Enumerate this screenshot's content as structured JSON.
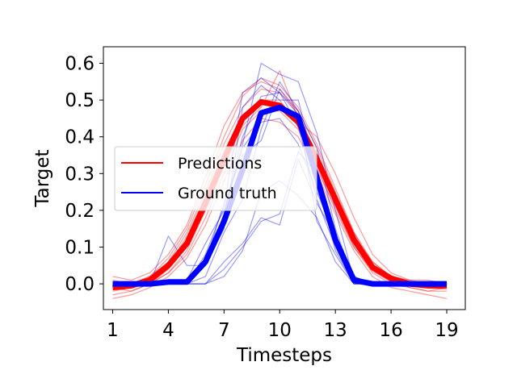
{
  "chart_data": {
    "type": "line",
    "title": "",
    "xlabel": "Timesteps",
    "ylabel": "Target",
    "xlim": [
      0.5,
      20.0
    ],
    "ylim": [
      -0.07,
      0.645
    ],
    "xticks": [
      1,
      4,
      7,
      10,
      13,
      16,
      19
    ],
    "xtick_labels": [
      "1",
      "4",
      "7",
      "10",
      "13",
      "16",
      "19"
    ],
    "yticks": [
      0.0,
      0.1,
      0.2,
      0.3,
      0.4,
      0.5,
      0.6
    ],
    "ytick_labels": [
      "0.0",
      "0.1",
      "0.2",
      "0.3",
      "0.4",
      "0.5",
      "0.6"
    ],
    "grid": false,
    "legend": {
      "position": "center-left",
      "entries": [
        {
          "label": "Predictions",
          "color": "#ff0000"
        },
        {
          "label": "Ground truth",
          "color": "#0000ff"
        }
      ]
    },
    "x": [
      1,
      2,
      3,
      4,
      5,
      6,
      7,
      8,
      9,
      10,
      11,
      12,
      13,
      14,
      15,
      16,
      17,
      18,
      19
    ],
    "series": [
      {
        "name": "Predictions",
        "color": "#ff0000",
        "width": 7,
        "opacity": 1.0,
        "values": [
          -0.01,
          -0.005,
          0.01,
          0.05,
          0.11,
          0.22,
          0.34,
          0.45,
          0.495,
          0.485,
          0.44,
          0.34,
          0.23,
          0.12,
          0.045,
          0.015,
          0.0,
          -0.005,
          -0.005
        ]
      },
      {
        "name": "Ground truth",
        "color": "#0000ff",
        "width": 7,
        "opacity": 1.0,
        "values": [
          0.0,
          0.0,
          0.0,
          0.005,
          0.005,
          0.06,
          0.17,
          0.31,
          0.465,
          0.48,
          0.455,
          0.29,
          0.12,
          0.01,
          0.0,
          0.0,
          0.0,
          0.0,
          0.0
        ]
      }
    ],
    "thin_series": [
      {
        "color": "#ff0000",
        "values": [
          0.01,
          0.0,
          0.02,
          0.06,
          0.14,
          0.25,
          0.38,
          0.48,
          0.53,
          0.52,
          0.47,
          0.37,
          0.25,
          0.14,
          0.06,
          0.02,
          0.005,
          0.0,
          -0.01
        ]
      },
      {
        "color": "#ff0000",
        "values": [
          -0.03,
          -0.02,
          0.0,
          0.03,
          0.08,
          0.18,
          0.3,
          0.42,
          0.47,
          0.47,
          0.42,
          0.31,
          0.21,
          0.1,
          0.03,
          0.0,
          -0.01,
          -0.02,
          -0.02
        ]
      },
      {
        "color": "#ff0000",
        "values": [
          0.0,
          0.0,
          0.02,
          0.07,
          0.15,
          0.27,
          0.4,
          0.51,
          0.56,
          0.54,
          0.48,
          0.38,
          0.26,
          0.14,
          0.05,
          0.015,
          0.0,
          0.0,
          0.0
        ]
      },
      {
        "color": "#ff0000",
        "values": [
          -0.04,
          -0.03,
          -0.01,
          0.02,
          0.07,
          0.16,
          0.28,
          0.39,
          0.45,
          0.44,
          0.4,
          0.3,
          0.19,
          0.09,
          0.02,
          -0.01,
          -0.02,
          -0.03,
          -0.04
        ]
      },
      {
        "color": "#ff0000",
        "values": [
          0.02,
          0.01,
          0.03,
          0.08,
          0.16,
          0.29,
          0.43,
          0.52,
          0.55,
          0.53,
          0.46,
          0.35,
          0.24,
          0.13,
          0.06,
          0.02,
          0.01,
          0.01,
          0.0
        ]
      },
      {
        "color": "#ff0000",
        "values": [
          -0.02,
          -0.01,
          0.0,
          0.04,
          0.1,
          0.2,
          0.32,
          0.43,
          0.48,
          0.58,
          0.45,
          0.33,
          0.22,
          0.11,
          0.04,
          0.01,
          -0.01,
          -0.02,
          -0.01
        ]
      },
      {
        "color": "#ff0000",
        "values": [
          0.0,
          0.0,
          0.01,
          0.05,
          0.13,
          0.24,
          0.36,
          0.46,
          0.5,
          0.49,
          0.44,
          0.4,
          0.3,
          0.18,
          0.08,
          0.03,
          0.01,
          0.0,
          0.0
        ]
      },
      {
        "color": "#ff0000",
        "values": [
          -0.01,
          -0.02,
          0.0,
          0.03,
          0.09,
          0.2,
          0.33,
          0.44,
          0.5,
          0.5,
          0.43,
          0.32,
          0.2,
          0.1,
          0.035,
          0.005,
          -0.005,
          -0.01,
          -0.015
        ]
      },
      {
        "color": "#0000ff",
        "values": [
          0.0,
          0.0,
          0.0,
          0.13,
          0.05,
          0.05,
          0.19,
          0.38,
          0.6,
          0.57,
          0.55,
          0.41,
          0.2,
          0.01,
          0.0,
          0.0,
          0.0,
          0.0,
          0.0
        ]
      },
      {
        "color": "#0000ff",
        "values": [
          0.0,
          0.0,
          0.0,
          0.0,
          0.0,
          0.08,
          0.21,
          0.52,
          0.56,
          0.52,
          0.43,
          0.23,
          0.1,
          0.0,
          0.0,
          0.0,
          0.0,
          0.0,
          0.0
        ]
      },
      {
        "color": "#0000ff",
        "values": [
          0.0,
          0.0,
          0.0,
          0.0,
          0.0,
          0.02,
          0.14,
          0.23,
          0.42,
          0.55,
          0.47,
          0.17,
          0.08,
          0.0,
          0.0,
          0.0,
          0.0,
          0.0,
          0.0
        ]
      },
      {
        "color": "#0000ff",
        "values": [
          0.0,
          0.0,
          0.0,
          0.0,
          0.0,
          0.0,
          0.06,
          0.11,
          0.18,
          0.16,
          0.34,
          0.22,
          0.13,
          0.02,
          0.0,
          0.0,
          0.0,
          0.0,
          0.0
        ]
      },
      {
        "color": "#0000ff",
        "values": [
          0.0,
          0.0,
          0.0,
          0.01,
          0.01,
          0.11,
          0.2,
          0.37,
          0.44,
          0.45,
          0.38,
          0.25,
          0.13,
          0.01,
          0.0,
          0.0,
          0.0,
          0.0,
          0.0
        ]
      },
      {
        "color": "#0000ff",
        "values": [
          0.0,
          0.0,
          0.0,
          0.0,
          0.0,
          0.0,
          0.02,
          0.09,
          0.25,
          0.28,
          0.24,
          0.18,
          0.06,
          0.0,
          0.0,
          0.0,
          0.0,
          0.0,
          0.0
        ]
      },
      {
        "color": "#0000ff",
        "values": [
          0.0,
          0.0,
          0.0,
          0.0,
          0.01,
          0.05,
          0.15,
          0.48,
          0.54,
          0.5,
          0.5,
          0.3,
          0.12,
          0.0,
          0.0,
          0.0,
          0.0,
          0.0,
          0.0
        ]
      },
      {
        "color": "#0000ff",
        "values": [
          0.0,
          0.0,
          0.0,
          0.0,
          0.0,
          0.05,
          0.19,
          0.4,
          0.51,
          0.52,
          0.46,
          0.26,
          0.11,
          0.02,
          0.0,
          0.0,
          0.0,
          0.0,
          0.0
        ]
      },
      {
        "color": "#0000ff",
        "values": [
          0.0,
          0.0,
          0.0,
          0.01,
          0.0,
          0.06,
          0.22,
          0.35,
          0.39,
          0.53,
          0.47,
          0.37,
          0.15,
          0.01,
          0.0,
          0.0,
          0.0,
          0.0,
          0.0
        ]
      },
      {
        "color": "#0000ff",
        "values": [
          0.0,
          0.0,
          0.0,
          0.0,
          0.0,
          0.0,
          0.04,
          0.1,
          0.17,
          0.19,
          0.36,
          0.3,
          0.09,
          0.0,
          0.0,
          0.0,
          0.0,
          0.0,
          0.0
        ]
      }
    ]
  }
}
